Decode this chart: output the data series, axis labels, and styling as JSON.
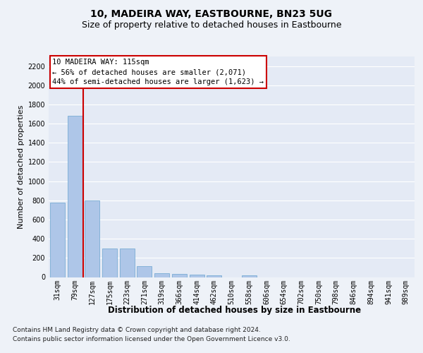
{
  "title": "10, MADEIRA WAY, EASTBOURNE, BN23 5UG",
  "subtitle": "Size of property relative to detached houses in Eastbourne",
  "xlabel": "Distribution of detached houses by size in Eastbourne",
  "ylabel": "Number of detached properties",
  "footer_line1": "Contains HM Land Registry data © Crown copyright and database right 2024.",
  "footer_line2": "Contains public sector information licensed under the Open Government Licence v3.0.",
  "categories": [
    "31sqm",
    "79sqm",
    "127sqm",
    "175sqm",
    "223sqm",
    "271sqm",
    "319sqm",
    "366sqm",
    "414sqm",
    "462sqm",
    "510sqm",
    "558sqm",
    "606sqm",
    "654sqm",
    "702sqm",
    "750sqm",
    "798sqm",
    "846sqm",
    "894sqm",
    "941sqm",
    "989sqm"
  ],
  "values": [
    775,
    1680,
    800,
    300,
    300,
    115,
    40,
    30,
    25,
    20,
    0,
    20,
    0,
    0,
    0,
    0,
    0,
    0,
    0,
    0,
    0
  ],
  "bar_color": "#aec6e8",
  "bar_edge_color": "#7aadd4",
  "red_line_color": "#cc0000",
  "red_line_xindex": 1.5,
  "annotation_text": "10 MADEIRA WAY: 115sqm\n← 56% of detached houses are smaller (2,071)\n44% of semi-detached houses are larger (1,623) →",
  "annotation_box_color": "white",
  "annotation_box_edge": "#cc0000",
  "ylim": [
    0,
    2300
  ],
  "yticks": [
    0,
    200,
    400,
    600,
    800,
    1000,
    1200,
    1400,
    1600,
    1800,
    2000,
    2200
  ],
  "bg_color": "#eef2f8",
  "plot_bg_color": "#e4eaf5",
  "grid_color": "white",
  "title_fontsize": 10,
  "subtitle_fontsize": 9,
  "xlabel_fontsize": 8.5,
  "ylabel_fontsize": 8,
  "tick_fontsize": 7,
  "annot_fontsize": 7.5,
  "footer_fontsize": 6.5
}
